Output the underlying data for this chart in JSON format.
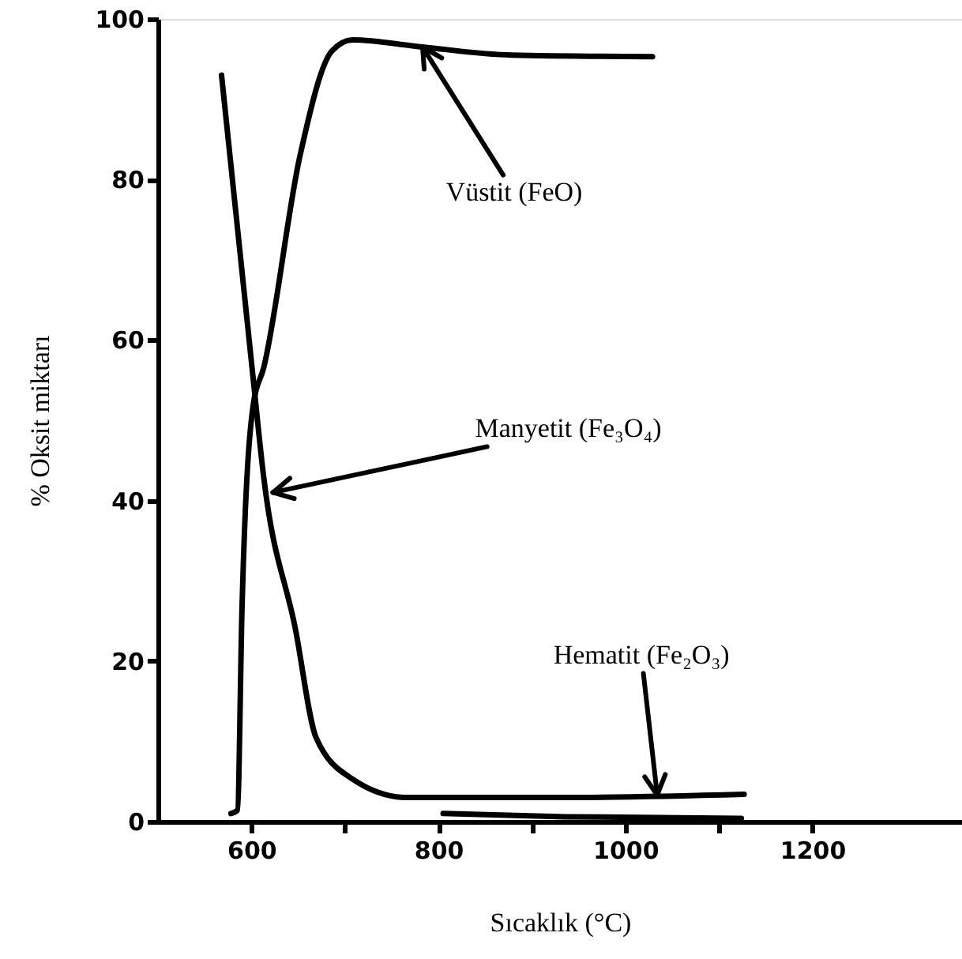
{
  "chart_data": {
    "type": "line",
    "xlabel": "Sıcaklık (°C)",
    "ylabel": "% Oksit miktarı",
    "xlim": [
      500,
      1360
    ],
    "ylim": [
      0,
      100
    ],
    "xticks": [
      600,
      {
        "value": 700,
        "label": null
      },
      800,
      {
        "value": 900,
        "label": null
      },
      1000,
      {
        "value": 1100,
        "label": null
      },
      1200
    ],
    "yticks": [
      0,
      20,
      40,
      60,
      80,
      100
    ],
    "grid": false,
    "marker": "none",
    "line_style": "solid",
    "series": [
      {
        "color": "#000000",
        "x": [
          578,
          585,
          590,
          602,
          613,
          652,
          686,
          708,
          783,
          878,
          1029
        ],
        "values": [
          1,
          1.4,
          27,
          52,
          56.5,
          83,
          96,
          97.4,
          96.5,
          95.5,
          95.3
        ]
      },
      {
        "color": "#000000",
        "x": [
          568,
          602,
          613,
          647,
          669,
          708,
          766,
          936,
          1127
        ],
        "values": [
          93,
          55,
          43,
          24,
          10.5,
          5.3,
          3,
          3,
          3.4
        ]
      },
      {
        "color": "#000000",
        "x": [
          805,
          936,
          1124
        ],
        "values": [
          1,
          0.6,
          0.4
        ]
      }
    ],
    "annotations": [
      {
        "text": "Vüstit (FeO)",
        "x": 783,
        "y": 96.5
      },
      {
        "text": "Manyetit (Fe₃O₄)",
        "x": 623,
        "y": 41
      },
      {
        "text": "Hematit (Fe₂O₃)",
        "x": 1034,
        "y": 3.3
      }
    ]
  }
}
